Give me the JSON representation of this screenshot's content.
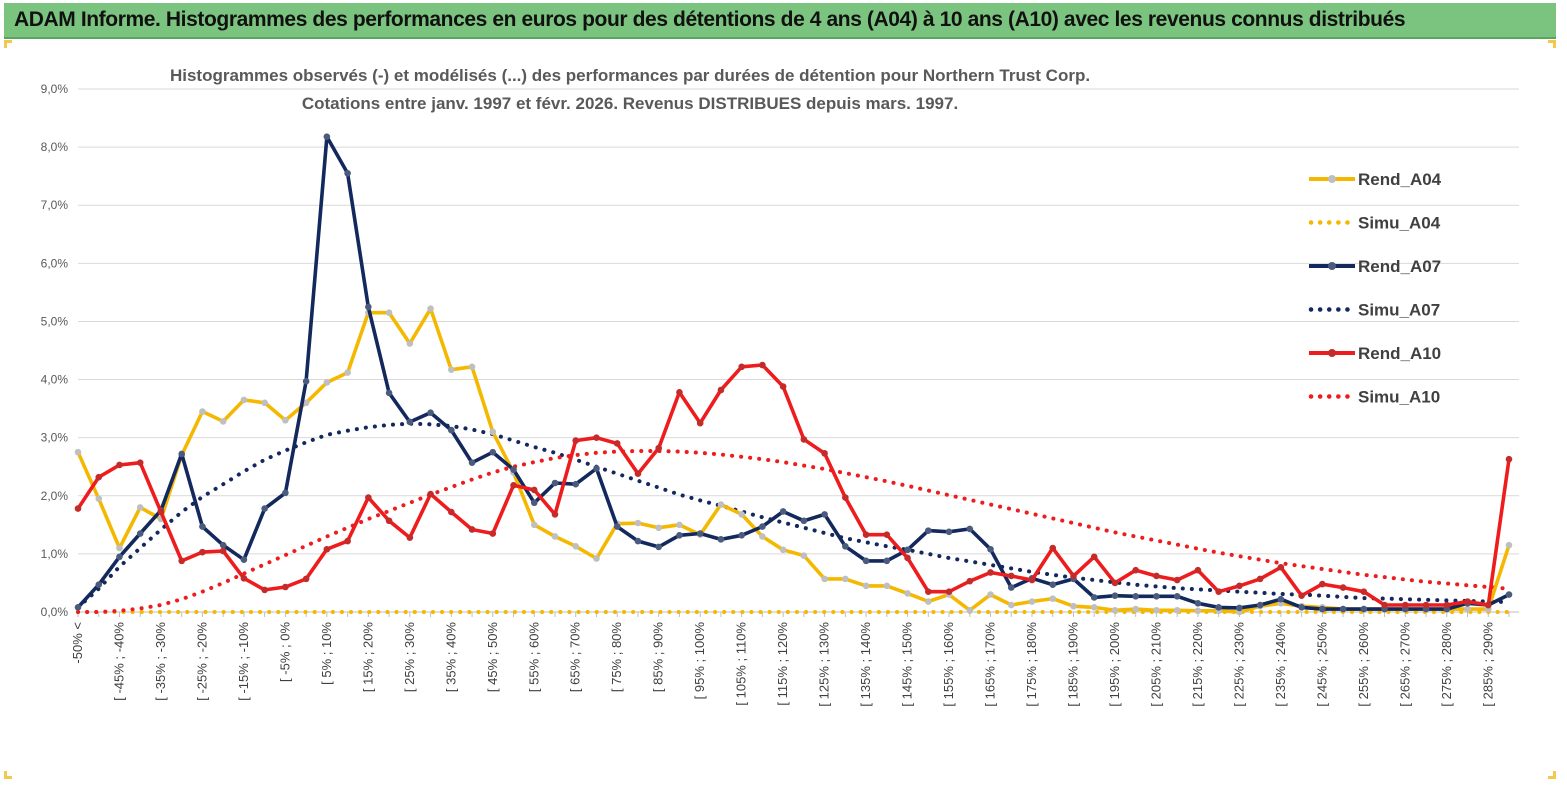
{
  "banner": {
    "title": "ADAM Informe. Histogrammes des performances en euros pour des détentions de 4 ans (A04) à 10 ans (A10) avec les revenus connus distribués"
  },
  "chart_data": {
    "type": "line",
    "title_lines": [
      "Histogrammes observés (-) et modélisés (...) des performances par durées de détention pour Northern Trust Corp.",
      "Cotations entre janv. 1997 et févr. 2026. Revenus DISTRIBUES depuis mars. 1997."
    ],
    "xlabel": "",
    "ylabel": "",
    "ylim": [
      0,
      9
    ],
    "y_ticks": [
      "0,0%",
      "1,0%",
      "2,0%",
      "3,0%",
      "4,0%",
      "5,0%",
      "6,0%",
      "7,0%",
      "8,0%",
      "9,0%"
    ],
    "x_tick_labels": [
      "-50% <",
      "[ -45% ; -40%",
      "[ -35% ; -30%",
      "[ -25% ; -20%",
      "[ -15% ; -10%",
      "[ -5% ; 0%",
      "[ 5% ; 10%",
      "[ 15% ; 20%",
      "[ 25% ; 30%",
      "[ 35% ; 40%",
      "[ 45% ; 50%",
      "[ 55% ; 60%",
      "[ 65% ; 70%",
      "[ 75% ; 80%",
      "[ 85% ; 90%",
      "[ 95% ; 100%",
      "[ 105% ; 110%",
      "[ 115% ; 120%",
      "[ 125% ; 130%",
      "[ 135% ; 140%",
      "[ 145% ; 150%",
      "[ 155% ; 160%",
      "[ 165% ; 170%",
      "[ 175% ; 180%",
      "[ 185% ; 190%",
      "[ 195% ; 200%",
      "[ 205% ; 210%",
      "[ 215% ; 220%",
      "[ 225% ; 230%",
      "[ 235% ; 240%",
      "[ 245% ; 250%",
      "[ 255% ; 260%",
      "[ 265% ; 270%",
      "[ 275% ; 280%",
      "[ 285% ; 290%"
    ],
    "categories_count": 70,
    "series": [
      {
        "name": "Rend_A04",
        "style": "solid",
        "color": "#f5b800",
        "values": [
          2.75,
          1.95,
          1.1,
          1.8,
          1.6,
          2.7,
          3.45,
          3.28,
          3.65,
          3.6,
          3.3,
          3.6,
          3.95,
          4.12,
          5.15,
          5.15,
          4.62,
          5.22,
          4.17,
          4.22,
          3.1,
          2.4,
          1.5,
          1.3,
          1.13,
          0.92,
          1.52,
          1.53,
          1.45,
          1.5,
          1.33,
          1.85,
          1.68,
          1.3,
          1.07,
          0.97,
          0.57,
          0.57,
          0.45,
          0.45,
          0.32,
          0.18,
          0.3,
          0.03,
          0.3,
          0.12,
          0.18,
          0.23,
          0.1,
          0.08,
          0.03,
          0.05,
          0.03,
          0.03,
          0.02,
          0.02,
          0.0,
          0.1,
          0.15,
          0.1,
          0.08,
          0.05,
          0.05,
          0.05,
          0.05,
          0.05,
          0.05,
          0.05,
          0.05,
          1.15
        ]
      },
      {
        "name": "Simu_A04",
        "style": "dotted",
        "color": "#f5b800",
        "values": [
          0,
          0,
          0,
          0,
          0,
          0,
          0,
          0,
          0,
          0,
          0,
          0,
          0,
          0,
          0,
          0,
          0,
          0,
          0,
          0,
          0,
          0,
          0,
          0,
          0,
          0,
          0,
          0,
          0,
          0,
          0,
          0,
          0,
          0,
          0,
          0,
          0,
          0,
          0,
          0,
          0,
          0,
          0,
          0,
          0,
          0,
          0,
          0,
          0,
          0,
          0,
          0,
          0,
          0,
          0,
          0,
          0,
          0,
          0,
          0,
          0,
          0,
          0,
          0,
          0,
          0,
          0,
          0,
          0,
          0
        ]
      },
      {
        "name": "Rend_A07",
        "style": "solid",
        "color": "#13285c",
        "values": [
          0.08,
          0.47,
          0.95,
          1.35,
          1.75,
          2.72,
          1.47,
          1.15,
          0.9,
          1.78,
          2.05,
          3.97,
          8.18,
          7.55,
          5.25,
          3.77,
          3.27,
          3.43,
          3.13,
          2.57,
          2.75,
          2.45,
          1.88,
          2.22,
          2.2,
          2.47,
          1.47,
          1.22,
          1.12,
          1.32,
          1.35,
          1.25,
          1.32,
          1.47,
          1.73,
          1.57,
          1.68,
          1.13,
          0.88,
          0.88,
          1.07,
          1.4,
          1.38,
          1.43,
          1.08,
          0.42,
          0.58,
          0.47,
          0.57,
          0.25,
          0.28,
          0.27,
          0.27,
          0.27,
          0.15,
          0.08,
          0.07,
          0.12,
          0.22,
          0.08,
          0.05,
          0.05,
          0.05,
          0.05,
          0.05,
          0.05,
          0.05,
          0.15,
          0.12,
          0.3
        ]
      },
      {
        "name": "Simu_A07",
        "style": "dotted",
        "color": "#13285c",
        "values": [
          0.08,
          0.4,
          0.78,
          1.1,
          1.42,
          1.72,
          1.98,
          2.2,
          2.42,
          2.62,
          2.78,
          2.92,
          3.05,
          3.12,
          3.18,
          3.22,
          3.24,
          3.23,
          3.2,
          3.14,
          3.06,
          2.95,
          2.84,
          2.74,
          2.62,
          2.5,
          2.38,
          2.26,
          2.14,
          2.02,
          1.92,
          1.83,
          1.73,
          1.63,
          1.54,
          1.45,
          1.36,
          1.27,
          1.2,
          1.13,
          1.07,
          1.0,
          0.93,
          0.87,
          0.81,
          0.75,
          0.69,
          0.64,
          0.59,
          0.55,
          0.51,
          0.47,
          0.44,
          0.41,
          0.39,
          0.37,
          0.35,
          0.33,
          0.31,
          0.3,
          0.28,
          0.26,
          0.24,
          0.23,
          0.22,
          0.21,
          0.2,
          0.19,
          0.18,
          0.17
        ]
      },
      {
        "name": "Rend_A10",
        "style": "solid",
        "color": "#ee1c1c",
        "values": [
          1.78,
          2.32,
          2.53,
          2.57,
          1.72,
          0.88,
          1.03,
          1.05,
          0.58,
          0.38,
          0.43,
          0.57,
          1.08,
          1.22,
          1.97,
          1.57,
          1.28,
          2.03,
          1.72,
          1.42,
          1.35,
          2.18,
          2.1,
          1.68,
          2.95,
          3.0,
          2.9,
          2.38,
          2.82,
          3.78,
          3.25,
          3.82,
          4.22,
          4.25,
          3.88,
          2.97,
          2.73,
          1.97,
          1.33,
          1.33,
          0.93,
          0.35,
          0.35,
          0.53,
          0.68,
          0.62,
          0.55,
          1.1,
          0.62,
          0.95,
          0.5,
          0.72,
          0.62,
          0.55,
          0.72,
          0.35,
          0.45,
          0.57,
          0.77,
          0.28,
          0.48,
          0.42,
          0.35,
          0.12,
          0.12,
          0.12,
          0.12,
          0.18,
          0.12,
          2.63
        ]
      },
      {
        "name": "Simu_A10",
        "style": "dotted",
        "color": "#ee1c1c",
        "values": [
          0,
          0,
          0.02,
          0.06,
          0.12,
          0.22,
          0.35,
          0.5,
          0.66,
          0.82,
          0.98,
          1.14,
          1.3,
          1.45,
          1.6,
          1.74,
          1.88,
          2.02,
          2.15,
          2.28,
          2.4,
          2.5,
          2.58,
          2.65,
          2.7,
          2.74,
          2.76,
          2.77,
          2.77,
          2.76,
          2.74,
          2.71,
          2.67,
          2.63,
          2.58,
          2.52,
          2.46,
          2.39,
          2.32,
          2.25,
          2.17,
          2.09,
          2.01,
          1.93,
          1.85,
          1.77,
          1.69,
          1.61,
          1.53,
          1.45,
          1.37,
          1.3,
          1.23,
          1.16,
          1.09,
          1.02,
          0.96,
          0.9,
          0.84,
          0.79,
          0.74,
          0.69,
          0.64,
          0.6,
          0.56,
          0.52,
          0.49,
          0.46,
          0.43,
          0.4
        ]
      }
    ]
  }
}
